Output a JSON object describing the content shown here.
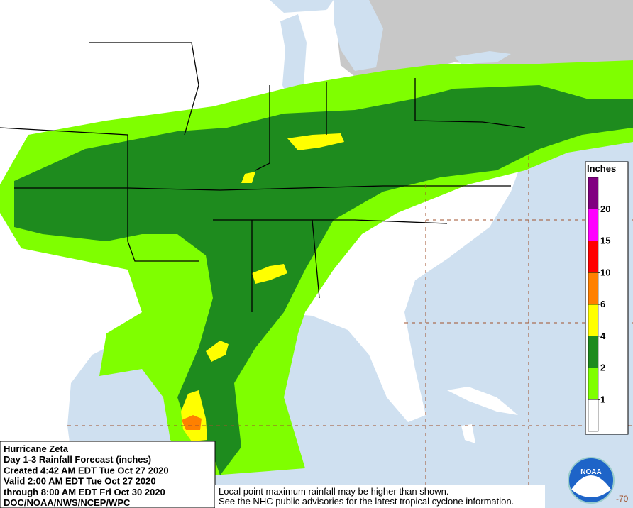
{
  "info": {
    "lines": [
      "Hurricane Zeta",
      "Day 1-3 Rainfall Forecast (inches)",
      "Created 4:42 AM EDT Tue Oct 27 2020",
      "Valid 2:00 AM EDT Tue Oct 27 2020",
      "through 8:00 AM EDT Fri Oct 30 2020",
      "DOC/NOAA/NWS/NCEP/WPC"
    ]
  },
  "disclaimer": [
    "Local point maximum rainfall may be higher than shown.",
    "See the NHC public advisories for the latest tropical cyclone information."
  ],
  "legend": {
    "title": "Inches",
    "ticks": [
      1,
      2,
      4,
      6,
      10,
      15,
      20
    ],
    "colors": [
      "#ffffff",
      "#7fff00",
      "#1e8b1e",
      "#ffff00",
      "#ff8000",
      "#ff0000",
      "#ff00ff",
      "#800080"
    ]
  },
  "longitude_label": "-70",
  "logo": "NOAA"
}
